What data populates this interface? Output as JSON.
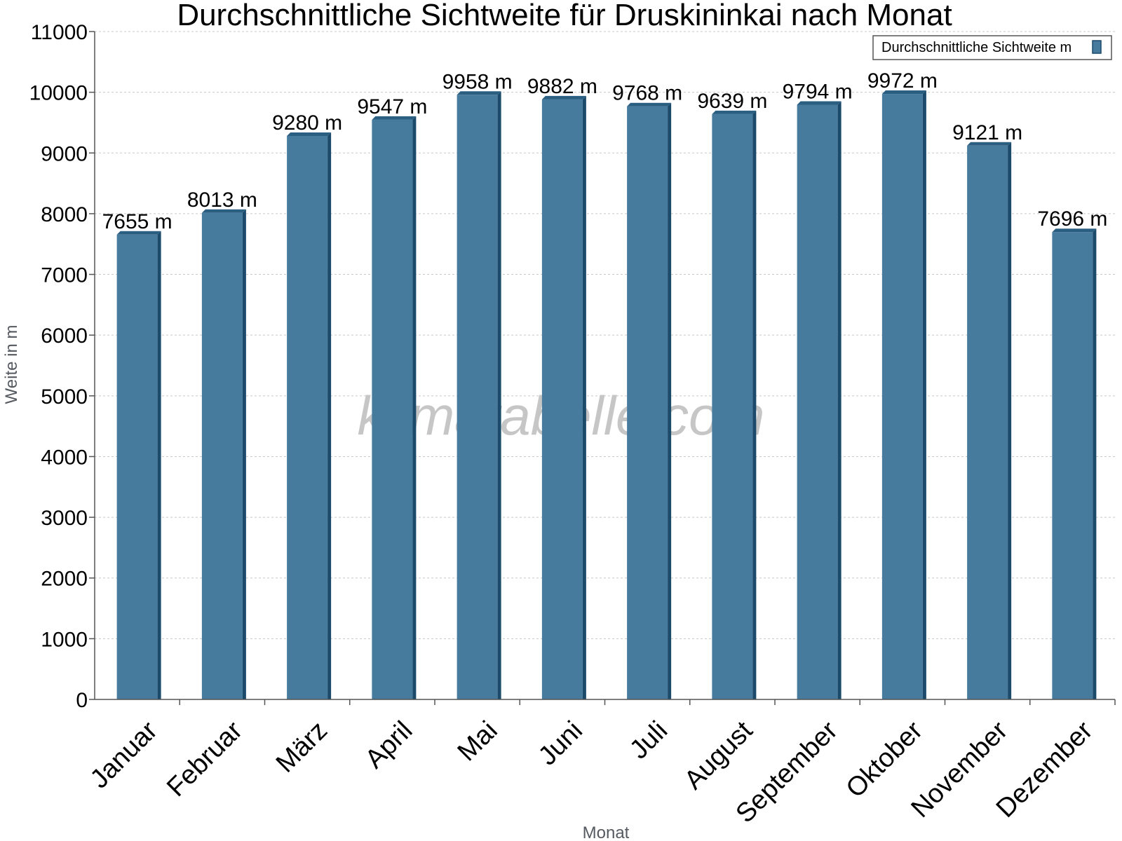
{
  "chart_data": {
    "type": "bar",
    "title": "Durchschnittliche Sichtweite für Druskininkai nach Monat",
    "xlabel": "Monat",
    "ylabel": "Weite in m",
    "categories": [
      "Januar",
      "Februar",
      "März",
      "April",
      "Mai",
      "Juni",
      "Juli",
      "August",
      "September",
      "Oktober",
      "November",
      "Dezember"
    ],
    "series": [
      {
        "name": "Durchschnittliche Sichtweite m",
        "values": [
          7655,
          8013,
          9280,
          9547,
          9958,
          9882,
          9768,
          9639,
          9794,
          9972,
          9121,
          7696
        ],
        "labels": [
          "7655 m",
          "8013 m",
          "9280 m",
          "9547 m",
          "9958 m",
          "9882 m",
          "9768 m",
          "9639 m",
          "9794 m",
          "9972 m",
          "9121 m",
          "7696 m"
        ]
      }
    ],
    "ylim": [
      0,
      11000
    ],
    "yticks": [
      "0",
      "1000",
      "2000",
      "3000",
      "4000",
      "5000",
      "6000",
      "7000",
      "8000",
      "9000",
      "10000",
      "11000"
    ],
    "grid": true,
    "legend_position": "top-right",
    "watermark": "klimatabelle.com",
    "colors": {
      "bar_front": "#467b9d",
      "bar_side": "#1c4a6b",
      "bar_top": "#2a5f82",
      "grid": "#c8c8c8",
      "axis": "#555555"
    }
  }
}
